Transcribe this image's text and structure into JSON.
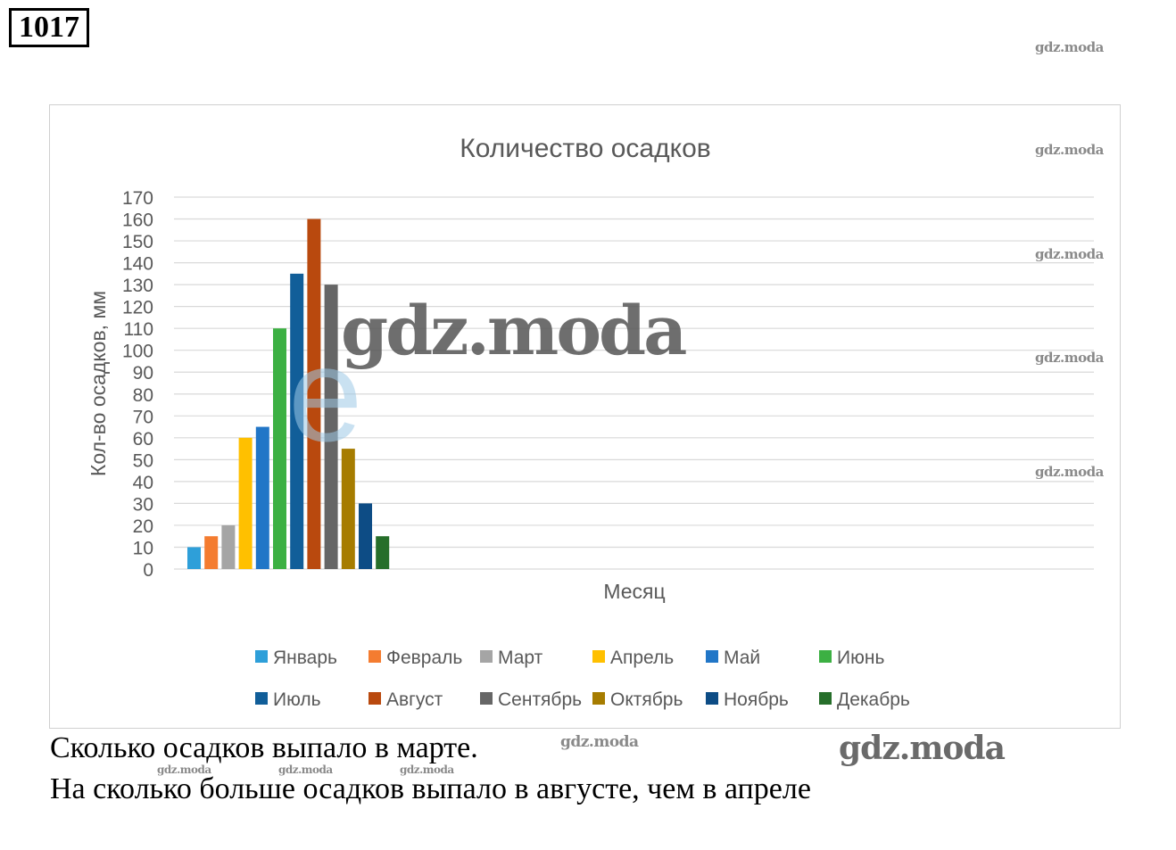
{
  "task_number": "1017",
  "chart_data": {
    "type": "bar",
    "title": "Количество осадков",
    "xlabel": "Месяц",
    "ylabel": "Кол-во осадков, мм",
    "ylim": [
      0,
      170
    ],
    "y_ticks": [
      "0",
      "10",
      "20",
      "30",
      "40",
      "50",
      "60",
      "70",
      "80",
      "90",
      "100",
      "110",
      "120",
      "130",
      "140",
      "150",
      "160",
      "170"
    ],
    "grid": true,
    "legend_position": "bottom",
    "series": [
      {
        "name": "Январь",
        "value": 10,
        "color": "#2E9FD9"
      },
      {
        "name": "Февраль",
        "value": 15,
        "color": "#F47C30"
      },
      {
        "name": "Март",
        "value": 20,
        "color": "#A5A5A5"
      },
      {
        "name": "Апрель",
        "value": 60,
        "color": "#FFC000"
      },
      {
        "name": "Май",
        "value": 65,
        "color": "#2176C7"
      },
      {
        "name": "Июнь",
        "value": 110,
        "color": "#3CB043"
      },
      {
        "name": "Июль",
        "value": 135,
        "color": "#115E99"
      },
      {
        "name": "Август",
        "value": 160,
        "color": "#B9490E"
      },
      {
        "name": "Сентябрь",
        "value": 130,
        "color": "#666666"
      },
      {
        "name": "Октябрь",
        "value": 55,
        "color": "#A67C00"
      },
      {
        "name": "Ноябрь",
        "value": 30,
        "color": "#0D4C85"
      },
      {
        "name": "Декабрь",
        "value": 15,
        "color": "#266E2A"
      }
    ]
  },
  "questions": [
    "Сколько осадков выпало в марте.",
    "На сколько больше осадков выпало в августе, чем в апреле"
  ],
  "watermark": "gdz.moda",
  "watermark_letter": "e"
}
